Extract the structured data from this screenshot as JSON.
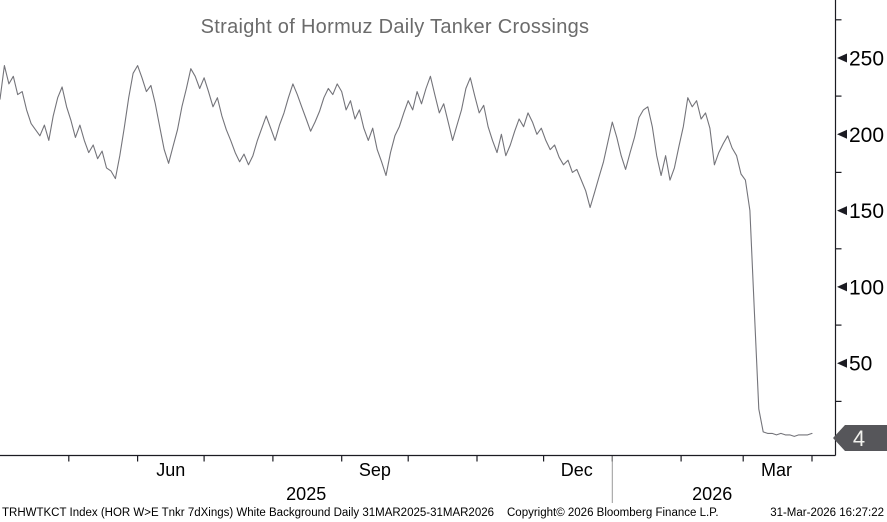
{
  "title": "Straight of Hormuz Daily Tanker Crossings",
  "footer": {
    "left": "TRHWTKCT Index (HOR W>E Tnkr 7dXings) White Background Daily 31MAR2025-31MAR2026",
    "center": "Copyright© 2026 Bloomberg Finance L.P.",
    "right": "31-Mar-2026 16:27:22"
  },
  "last_value_label": "4",
  "colors": {
    "background": "#ffffff",
    "line": "#74747a",
    "axis": "#1b1b22",
    "tick_label": "#000000",
    "title_text": "#6b6b6b",
    "last_value_badge_bg": "#56565a",
    "last_value_badge_text": "#f2f2ee",
    "year_separator": "#999999"
  },
  "chart_data": {
    "type": "line",
    "title": "Straight of Hormuz Daily Tanker Crossings",
    "series_name": "TRHWTKCT Index (HOR W>E Tnkr 7dXings)",
    "x_range": [
      "31MAR2025",
      "31MAR2026"
    ],
    "sample_interval_days": 2,
    "values": [
      223,
      245,
      233,
      238,
      226,
      228,
      216,
      207,
      203,
      199,
      206,
      196,
      212,
      224,
      231,
      218,
      209,
      198,
      206,
      196,
      188,
      193,
      184,
      189,
      178,
      176,
      171,
      186,
      204,
      224,
      240,
      245,
      237,
      228,
      232,
      220,
      205,
      190,
      181,
      192,
      203,
      218,
      230,
      243,
      238,
      230,
      237,
      228,
      218,
      224,
      212,
      203,
      196,
      188,
      182,
      187,
      180,
      186,
      196,
      204,
      212,
      204,
      196,
      206,
      214,
      224,
      233,
      226,
      218,
      210,
      202,
      208,
      215,
      224,
      230,
      226,
      233,
      228,
      216,
      222,
      210,
      216,
      204,
      196,
      204,
      190,
      182,
      173,
      188,
      199,
      205,
      214,
      222,
      216,
      228,
      220,
      230,
      238,
      226,
      214,
      220,
      208,
      196,
      206,
      216,
      230,
      237,
      225,
      214,
      219,
      205,
      196,
      188,
      200,
      186,
      193,
      202,
      210,
      205,
      214,
      208,
      200,
      204,
      196,
      190,
      193,
      185,
      180,
      183,
      175,
      177,
      170,
      163,
      152,
      162,
      172,
      182,
      195,
      208,
      198,
      186,
      177,
      188,
      198,
      211,
      216,
      218,
      205,
      186,
      173,
      186,
      170,
      178,
      192,
      205,
      224,
      218,
      222,
      210,
      214,
      204,
      180,
      188,
      194,
      199,
      191,
      186,
      174,
      170,
      150,
      85,
      20,
      5,
      4,
      4,
      3,
      4,
      3,
      3,
      2,
      3,
      3,
      3,
      4
    ],
    "ylim": [
      0,
      288
    ],
    "y_major_ticks": [
      250,
      200,
      150,
      100,
      50
    ],
    "y_minor_ticks": [
      275,
      225,
      175,
      125,
      75,
      25
    ],
    "x_axis": {
      "total_days": 366,
      "month_tick_days": [
        31,
        62,
        92,
        123,
        154,
        184,
        215,
        245,
        276,
        307,
        335,
        366
      ],
      "month_labels": [
        {
          "label": "Jun",
          "day": 77
        },
        {
          "label": "Sep",
          "day": 169
        },
        {
          "label": "Dec",
          "day": 260
        },
        {
          "label": "Mar",
          "day": 350
        }
      ],
      "year_labels": [
        {
          "label": "2025",
          "day": 138
        },
        {
          "label": "2026",
          "day": 321
        }
      ],
      "year_separator_day": 276
    },
    "last_value": 4,
    "grid": false,
    "legend": "none"
  }
}
